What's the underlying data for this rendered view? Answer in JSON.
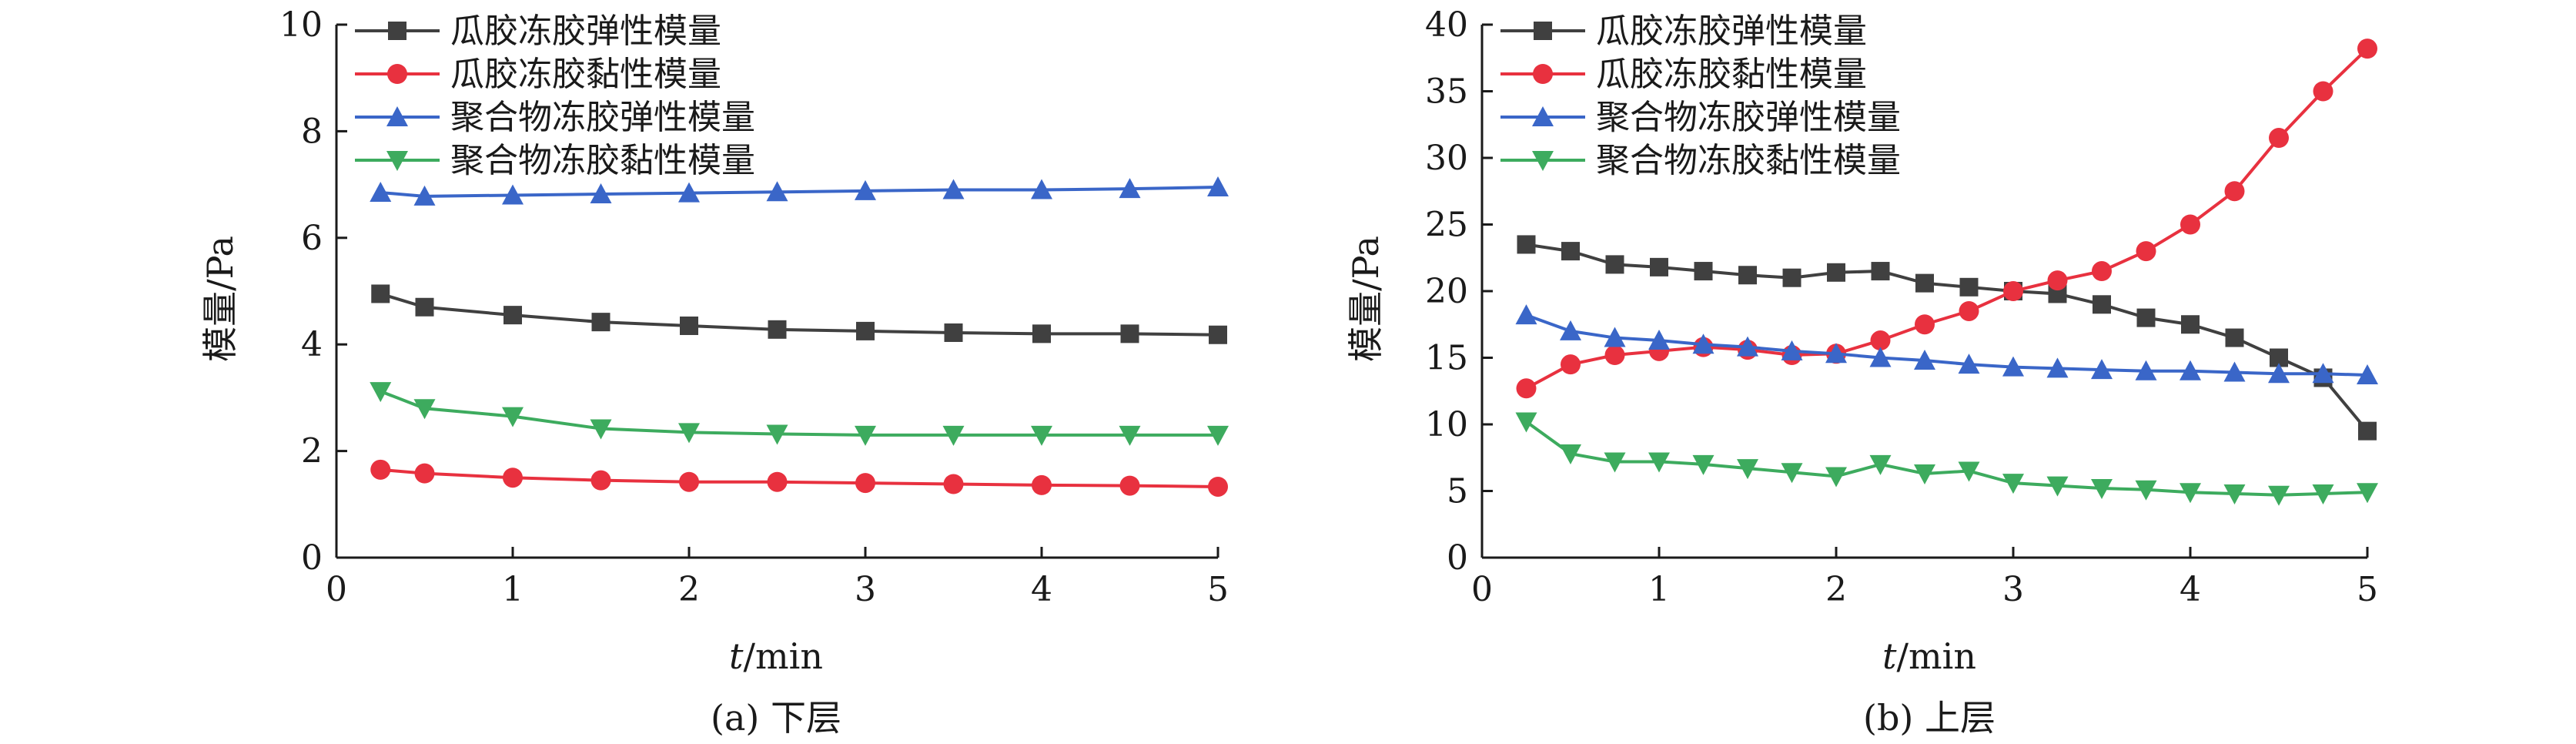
{
  "colors": {
    "gg_elastic": "#404040",
    "gg_viscous": "#e8313f",
    "pg_elastic": "#3a66c8",
    "pg_viscous": "#3dab5e",
    "axis": "#1a1a1a"
  },
  "chart_data": [
    {
      "type": "line",
      "caption": "(a) 下层",
      "xlabel_var": "t",
      "xlabel_unit": "/min",
      "ylabel": "模量/Pa",
      "xlim": [
        0,
        5
      ],
      "ylim": [
        0,
        10
      ],
      "xticks": [
        "0",
        "1",
        "2",
        "3",
        "4",
        "5"
      ],
      "yticks": [
        "0",
        "2",
        "4",
        "6",
        "8",
        "10"
      ],
      "legend_position": "top-left",
      "series": [
        {
          "name": "瓜胶冻胶弹性模量",
          "marker": "square",
          "color": "#404040",
          "x": [
            0.25,
            0.5,
            1.0,
            1.5,
            2.0,
            2.5,
            3.0,
            3.5,
            4.0,
            4.5,
            5.0
          ],
          "y": [
            4.95,
            4.7,
            4.55,
            4.42,
            4.35,
            4.28,
            4.25,
            4.22,
            4.2,
            4.2,
            4.18
          ]
        },
        {
          "name": "瓜胶冻胶黏性模量",
          "marker": "circle",
          "color": "#e8313f",
          "x": [
            0.25,
            0.5,
            1.0,
            1.5,
            2.0,
            2.5,
            3.0,
            3.5,
            4.0,
            4.5,
            5.0
          ],
          "y": [
            1.65,
            1.58,
            1.5,
            1.45,
            1.42,
            1.42,
            1.4,
            1.38,
            1.36,
            1.35,
            1.33
          ]
        },
        {
          "name": "聚合物冻胶弹性模量",
          "marker": "triangle-up",
          "color": "#3a66c8",
          "x": [
            0.25,
            0.5,
            1.0,
            1.5,
            2.0,
            2.5,
            3.0,
            3.5,
            4.0,
            4.5,
            5.0
          ],
          "y": [
            6.85,
            6.78,
            6.8,
            6.82,
            6.84,
            6.86,
            6.88,
            6.9,
            6.9,
            6.92,
            6.95
          ]
        },
        {
          "name": "聚合物冻胶黏性模量",
          "marker": "triangle-down",
          "color": "#3dab5e",
          "x": [
            0.25,
            0.5,
            1.0,
            1.5,
            2.0,
            2.5,
            3.0,
            3.5,
            4.0,
            4.5,
            5.0
          ],
          "y": [
            3.12,
            2.8,
            2.65,
            2.42,
            2.35,
            2.32,
            2.3,
            2.3,
            2.3,
            2.3,
            2.3
          ]
        }
      ]
    },
    {
      "type": "line",
      "caption": "(b) 上层",
      "xlabel_var": "t",
      "xlabel_unit": "/min",
      "ylabel": "模量/Pa",
      "xlim": [
        0,
        5
      ],
      "ylim": [
        0,
        40
      ],
      "xticks": [
        "0",
        "1",
        "2",
        "3",
        "4",
        "5"
      ],
      "yticks": [
        "0",
        "5",
        "10",
        "15",
        "20",
        "25",
        "30",
        "35",
        "40"
      ],
      "legend_position": "top-left",
      "series": [
        {
          "name": "瓜胶冻胶弹性模量",
          "marker": "square",
          "color": "#404040",
          "x": [
            0.25,
            0.5,
            0.75,
            1.0,
            1.25,
            1.5,
            1.75,
            2.0,
            2.25,
            2.5,
            2.75,
            3.0,
            3.25,
            3.5,
            3.75,
            4.0,
            4.25,
            4.5,
            4.75,
            5.0
          ],
          "y": [
            23.5,
            23.0,
            22.0,
            21.8,
            21.5,
            21.2,
            21.0,
            21.4,
            21.5,
            20.6,
            20.3,
            20.0,
            19.8,
            19.0,
            18.0,
            17.5,
            16.5,
            15.0,
            13.5,
            9.5
          ]
        },
        {
          "name": "瓜胶冻胶黏性模量",
          "marker": "circle",
          "color": "#e8313f",
          "x": [
            0.25,
            0.5,
            0.75,
            1.0,
            1.25,
            1.5,
            1.75,
            2.0,
            2.25,
            2.5,
            2.75,
            3.0,
            3.25,
            3.5,
            3.75,
            4.0,
            4.25,
            4.5,
            4.75,
            5.0
          ],
          "y": [
            12.7,
            14.5,
            15.2,
            15.5,
            15.8,
            15.6,
            15.2,
            15.3,
            16.3,
            17.5,
            18.5,
            20.0,
            20.8,
            21.5,
            23.0,
            25.0,
            27.5,
            31.5,
            35.0,
            38.2
          ]
        },
        {
          "name": "聚合物冻胶弹性模量",
          "marker": "triangle-up",
          "color": "#3a66c8",
          "x": [
            0.25,
            0.5,
            0.75,
            1.0,
            1.25,
            1.5,
            1.75,
            2.0,
            2.25,
            2.5,
            2.75,
            3.0,
            3.25,
            3.5,
            3.75,
            4.0,
            4.25,
            4.5,
            4.75,
            5.0
          ],
          "y": [
            18.2,
            17.0,
            16.5,
            16.3,
            16.0,
            15.8,
            15.5,
            15.3,
            15.0,
            14.8,
            14.5,
            14.3,
            14.2,
            14.1,
            14.0,
            14.0,
            13.9,
            13.8,
            13.8,
            13.7
          ]
        },
        {
          "name": "聚合物冻胶黏性模量",
          "marker": "triangle-down",
          "color": "#3dab5e",
          "x": [
            0.25,
            0.5,
            0.75,
            1.0,
            1.25,
            1.5,
            1.75,
            2.0,
            2.25,
            2.5,
            2.75,
            3.0,
            3.25,
            3.5,
            3.75,
            4.0,
            4.25,
            4.5,
            4.75,
            5.0
          ],
          "y": [
            10.2,
            7.8,
            7.2,
            7.2,
            7.0,
            6.7,
            6.4,
            6.1,
            7.0,
            6.3,
            6.5,
            5.6,
            5.4,
            5.2,
            5.1,
            4.9,
            4.8,
            4.7,
            4.8,
            4.9
          ]
        }
      ]
    }
  ]
}
